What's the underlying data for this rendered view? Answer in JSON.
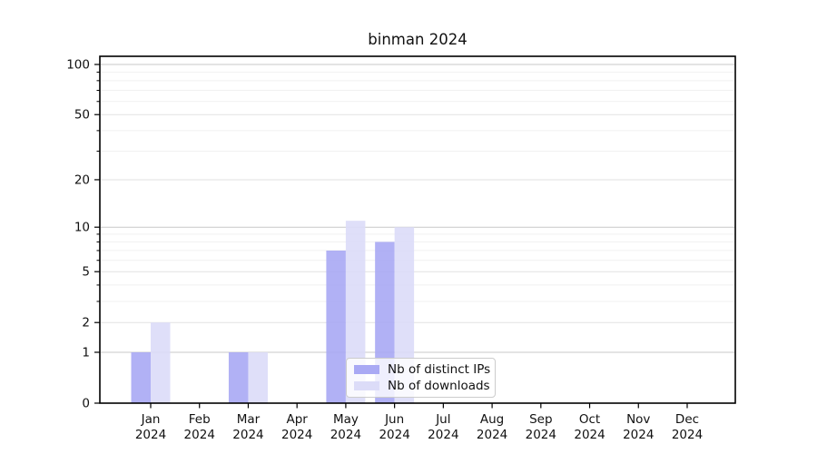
{
  "title": "binman 2024",
  "legend": {
    "items": [
      {
        "label": "Nb of distinct IPs",
        "color": "#a9a9f4"
      },
      {
        "label": "Nb of downloads",
        "color": "#dcdcf8"
      }
    ]
  },
  "colors": {
    "bar_distinct_ips": "#a9a9f4",
    "bar_downloads": "#dcdcf8",
    "axis": "#000000",
    "grid_strong": "#c9c9c9",
    "grid_mid": "#e2e2e2",
    "grid_minor": "#f1f1f1",
    "text": "#111111"
  },
  "chart_data": {
    "type": "bar",
    "title": "binman 2024",
    "categories": [
      "Jan 2024",
      "Feb 2024",
      "Mar 2024",
      "Apr 2024",
      "May 2024",
      "Jun 2024",
      "Jul 2024",
      "Aug 2024",
      "Sep 2024",
      "Oct 2024",
      "Nov 2024",
      "Dec 2024"
    ],
    "series": [
      {
        "name": "Nb of distinct IPs",
        "color": "#a9a9f4",
        "values": [
          1,
          0,
          1,
          0,
          7,
          8,
          0,
          0,
          0,
          0,
          0,
          0
        ]
      },
      {
        "name": "Nb of downloads",
        "color": "#dcdcf8",
        "values": [
          2,
          0,
          1,
          0,
          11,
          10,
          0,
          0,
          0,
          0,
          0,
          0
        ]
      }
    ],
    "xlabel": "",
    "ylabel": "",
    "y_scale": "log10(1+x)",
    "ylim": [
      0,
      100
    ],
    "y_ticks": [
      0,
      1,
      2,
      5,
      10,
      20,
      50,
      100
    ],
    "y_grid_strong": [
      1,
      10,
      100
    ],
    "y_grid_mid": [
      2,
      5,
      20,
      50
    ],
    "y_grid_minor": [
      3,
      4,
      6,
      7,
      8,
      9,
      30,
      40,
      60,
      70,
      80,
      90
    ],
    "grid": true,
    "legend_position": "lower center"
  }
}
